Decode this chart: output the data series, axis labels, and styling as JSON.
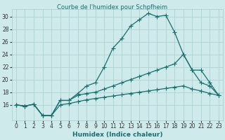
{
  "title": "Courbe de l'humidex pour Schpfheim",
  "xlabel": "Humidex (Indice chaleur)",
  "bg_color": "#ceeaea",
  "line_color": "#1a6e6e",
  "grid_color": "#a8cccc",
  "xlim": [
    -0.5,
    23.5
  ],
  "ylim": [
    13.5,
    31.2
  ],
  "xticks": [
    0,
    1,
    2,
    3,
    4,
    5,
    6,
    7,
    8,
    9,
    10,
    11,
    12,
    13,
    14,
    15,
    16,
    17,
    18,
    19,
    20,
    21,
    22,
    23
  ],
  "yticks": [
    16,
    18,
    20,
    22,
    24,
    26,
    28,
    30
  ],
  "line1_x": [
    0,
    1,
    2,
    3,
    4,
    5,
    6,
    7,
    8,
    9,
    10,
    11,
    12,
    13,
    14,
    15,
    16,
    17,
    18,
    19,
    20,
    21,
    22,
    23
  ],
  "line1_y": [
    16.0,
    15.8,
    16.1,
    14.3,
    14.3,
    16.7,
    16.7,
    17.8,
    19.0,
    19.5,
    22.0,
    25.0,
    26.5,
    28.5,
    29.5,
    30.5,
    30.0,
    30.2,
    27.5,
    24.0,
    21.5,
    19.5,
    19.0,
    17.5
  ],
  "line2_x": [
    0,
    1,
    2,
    3,
    4,
    5,
    6,
    7,
    8,
    9,
    10,
    11,
    12,
    13,
    14,
    15,
    16,
    17,
    18,
    19,
    20,
    21,
    22,
    23
  ],
  "line2_y": [
    16.0,
    15.8,
    16.1,
    14.3,
    14.3,
    16.7,
    16.7,
    17.5,
    17.8,
    18.0,
    18.5,
    19.0,
    19.5,
    20.0,
    20.5,
    21.0,
    21.5,
    22.0,
    22.5,
    24.0,
    21.5,
    21.5,
    19.5,
    17.5
  ],
  "line3_x": [
    0,
    1,
    2,
    3,
    4,
    5,
    6,
    7,
    8,
    9,
    10,
    11,
    12,
    13,
    14,
    15,
    16,
    17,
    18,
    19,
    20,
    21,
    22,
    23
  ],
  "line3_y": [
    16.0,
    15.8,
    16.1,
    14.3,
    14.3,
    16.0,
    16.2,
    16.5,
    16.8,
    17.0,
    17.2,
    17.4,
    17.6,
    17.8,
    18.0,
    18.2,
    18.4,
    18.6,
    18.8,
    19.0,
    18.5,
    18.2,
    17.8,
    17.5
  ],
  "label_fontsize": 6.5,
  "tick_fontsize": 5.5
}
